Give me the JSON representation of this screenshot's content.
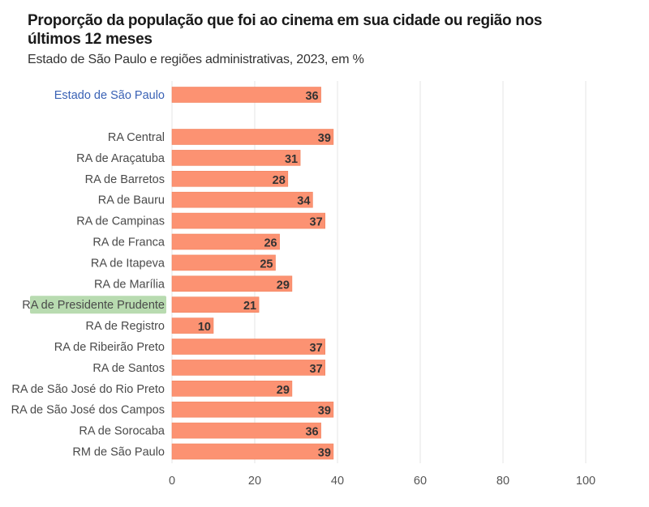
{
  "title": "Proporção da população que foi ao cinema em sua cidade ou região nos últimos 12 meses",
  "subtitle": "Estado de São Paulo e regiões administrativas, 2023, em %",
  "colors": {
    "bar": "#fc9272",
    "bar_stroke": "#f0845f",
    "highlight_label_bg": "#b8dbb0",
    "state_label": "#3a62b5",
    "grid": "#e6e6e6"
  },
  "chart_data": {
    "type": "bar",
    "orientation": "horizontal",
    "title": "Proporção da população que foi ao cinema em sua cidade ou região nos últimos 12 meses",
    "subtitle": "Estado de São Paulo e regiões administrativas, 2023, em %",
    "xlim": [
      0,
      100
    ],
    "x_ticks": [
      0,
      20,
      40,
      60,
      80,
      100
    ],
    "grid": "vertical",
    "highlight": "RA de Presidente Prudente",
    "categories": [
      "Estado de São Paulo",
      "RA Central",
      "RA de Araçatuba",
      "RA de Barretos",
      "RA de Bauru",
      "RA de Campinas",
      "RA de Franca",
      "RA de Itapeva",
      "RA de Marília",
      "RA de Presidente Prudente",
      "RA de Registro",
      "RA de Ribeirão Preto",
      "RA de Santos",
      "RA de São José do Rio Preto",
      "RA de São José dos Campos",
      "RA de Sorocaba",
      "RM de São Paulo"
    ],
    "values": [
      36,
      39,
      31,
      28,
      34,
      37,
      26,
      25,
      29,
      21,
      10,
      37,
      37,
      29,
      39,
      36,
      39
    ]
  }
}
